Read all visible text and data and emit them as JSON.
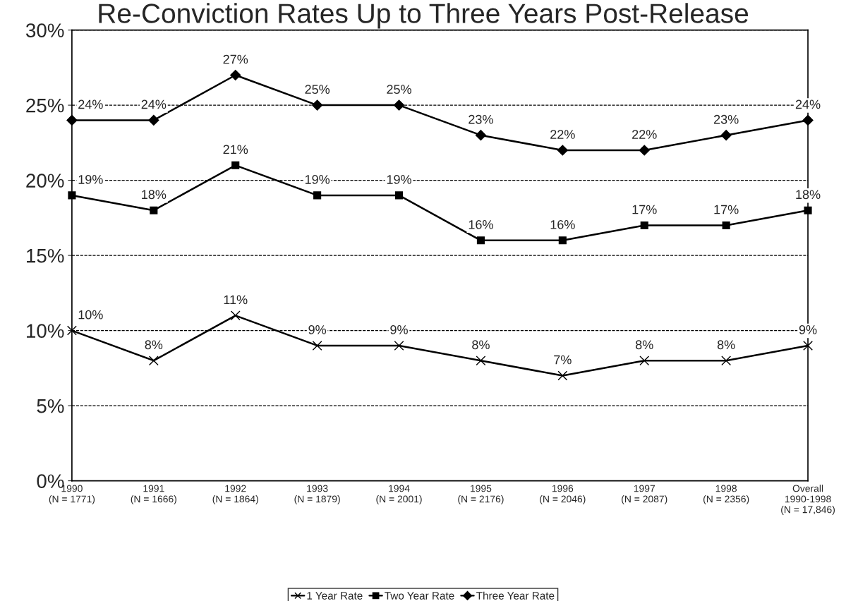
{
  "chart_data": {
    "type": "line",
    "title": "Re-Conviction Rates Up to Three Years Post-Release",
    "categories": [
      "1990\n(N = 1771)",
      "1991\n(N = 1666)",
      "1992\n(N = 1864)",
      "1993\n(N = 1879)",
      "1994\n(N = 2001)",
      "1995\n(N = 2176)",
      "1996\n(N = 2046)",
      "1997\n(N = 2087)",
      "1998\n(N = 2356)",
      "Overall\n1990-1998\n(N = 17,846)"
    ],
    "series": [
      {
        "name": "1 Year Rate",
        "color": "#000000",
        "marker": "cross",
        "values": [
          10,
          8,
          11,
          9,
          9,
          8,
          7,
          8,
          8,
          9
        ],
        "value_labels": [
          "10%",
          "8%",
          "11%",
          "9%",
          "9%",
          "8%",
          "7%",
          "8%",
          "8%",
          "9%"
        ]
      },
      {
        "name": "Two Year Rate",
        "color": "#000000",
        "marker": "square",
        "values": [
          19,
          18,
          21,
          19,
          19,
          16,
          16,
          17,
          17,
          18
        ],
        "value_labels": [
          "19%",
          "18%",
          "21%",
          "19%",
          "19%",
          "16%",
          "16%",
          "17%",
          "17%",
          "18%"
        ]
      },
      {
        "name": "Three Year Rate",
        "color": "#000000",
        "marker": "diamond",
        "values": [
          24,
          24,
          27,
          25,
          25,
          23,
          22,
          22,
          23,
          24
        ],
        "value_labels": [
          "24%",
          "24%",
          "27%",
          "25%",
          "25%",
          "23%",
          "22%",
          "22%",
          "23%",
          "24%"
        ]
      }
    ],
    "ylim": [
      0,
      30
    ],
    "yticks": [
      {
        "value": 0,
        "label": "0%"
      },
      {
        "value": 5,
        "label": "5%"
      },
      {
        "value": 10,
        "label": "10%"
      },
      {
        "value": 15,
        "label": "15%"
      },
      {
        "value": 20,
        "label": "20%"
      },
      {
        "value": 25,
        "label": "25%"
      },
      {
        "value": 30,
        "label": "30%"
      }
    ],
    "grid": "y",
    "legend": "bottom",
    "line_style": "solid"
  }
}
